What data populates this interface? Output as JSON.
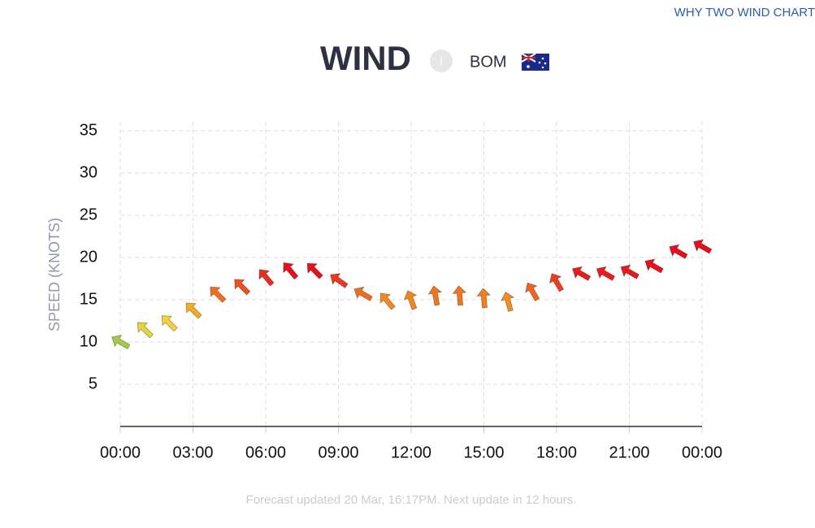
{
  "link": "WHY TWO WIND CHART",
  "header": {
    "title": "WIND",
    "info": "i",
    "source": "BOM"
  },
  "footer": "Forecast updated 20 Mar, 16:17PM. Next update in 12 hours.",
  "chart_data": {
    "type": "wind-arrows",
    "y_label": "SPEED (KNOTS)",
    "x": [
      0,
      1,
      2,
      3,
      4,
      5,
      6,
      7,
      8,
      9,
      10,
      11,
      12,
      13,
      14,
      15,
      16,
      17,
      18,
      19,
      20,
      21,
      22,
      23,
      24
    ],
    "series": [
      {
        "name": "Wind",
        "values": [
          10,
          11.5,
          12.3,
          13.8,
          15.7,
          16.6,
          17.7,
          18.5,
          18.5,
          17.3,
          15.7,
          14.9,
          15,
          15.5,
          15.5,
          15.2,
          14.8,
          16,
          17.1,
          18.1,
          18.1,
          18.3,
          19,
          20.7,
          21.3
        ],
        "directions": [
          300,
          315,
          315,
          315,
          315,
          315,
          320,
          320,
          315,
          305,
          300,
          320,
          340,
          350,
          355,
          355,
          345,
          330,
          330,
          300,
          300,
          300,
          300,
          300,
          300
        ]
      }
    ],
    "xlim": [
      0,
      24
    ],
    "xticks": [
      {
        "value": 0,
        "label": "00:00"
      },
      {
        "value": 3,
        "label": "03:00"
      },
      {
        "value": 6,
        "label": "06:00"
      },
      {
        "value": 9,
        "label": "09:00"
      },
      {
        "value": 12,
        "label": "12:00"
      },
      {
        "value": 15,
        "label": "15:00"
      },
      {
        "value": 18,
        "label": "18:00"
      },
      {
        "value": 21,
        "label": "21:00"
      },
      {
        "value": 24,
        "label": "00:00"
      }
    ],
    "ylim": [
      0,
      35
    ],
    "yticks": [
      5,
      10,
      15,
      20,
      25,
      30,
      35
    ],
    "grid": true
  }
}
